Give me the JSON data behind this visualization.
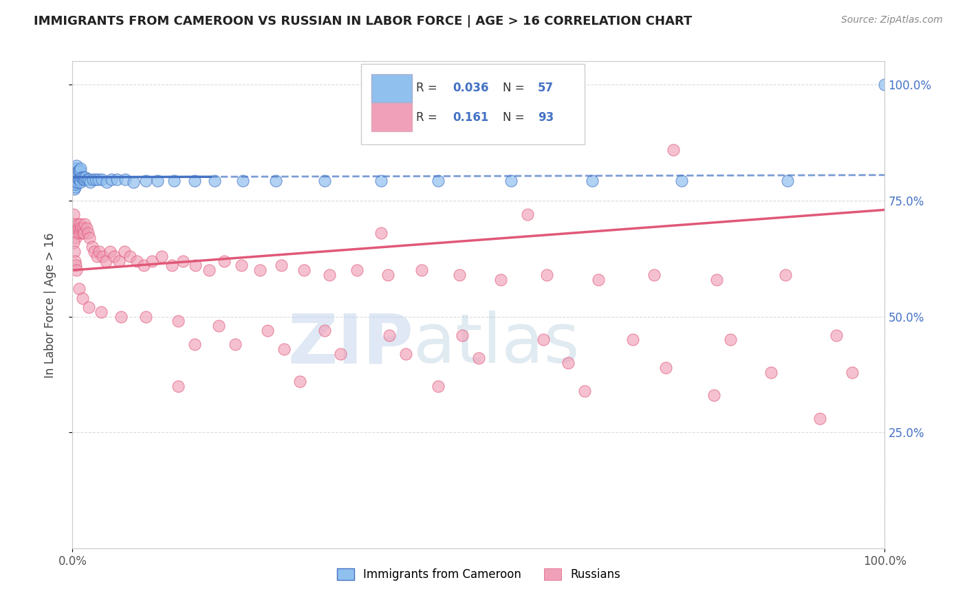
{
  "title": "IMMIGRANTS FROM CAMEROON VS RUSSIAN IN LABOR FORCE | AGE > 16 CORRELATION CHART",
  "source": "Source: ZipAtlas.com",
  "ylabel": "In Labor Force | Age > 16",
  "R_cameroon": 0.036,
  "N_cameroon": 57,
  "R_russian": 0.161,
  "N_russian": 93,
  "color_cameroon": "#90C0EE",
  "color_russian": "#F0A0B8",
  "line_color_cameroon": "#4472C4",
  "line_color_russian": "#E05878",
  "background_color": "#FFFFFF",
  "grid_color": "#CCCCCC",
  "xlim": [
    0.0,
    1.0
  ],
  "ylim": [
    0.0,
    1.05
  ],
  "ytick_labels_right": [
    "25.0%",
    "50.0%",
    "75.0%",
    "100.0%"
  ],
  "watermark_zip": "ZIP",
  "watermark_atlas": "atlas",
  "legend_labels": [
    "Immigrants from Cameroon",
    "Russians"
  ],
  "cam_x": [
    0.001,
    0.001,
    0.002,
    0.002,
    0.002,
    0.003,
    0.003,
    0.003,
    0.004,
    0.004,
    0.004,
    0.005,
    0.005,
    0.005,
    0.006,
    0.006,
    0.007,
    0.007,
    0.008,
    0.008,
    0.009,
    0.009,
    0.01,
    0.01,
    0.011,
    0.012,
    0.013,
    0.014,
    0.015,
    0.016,
    0.018,
    0.02,
    0.022,
    0.025,
    0.028,
    0.032,
    0.036,
    0.042,
    0.048,
    0.055,
    0.065,
    0.075,
    0.09,
    0.105,
    0.125,
    0.15,
    0.175,
    0.21,
    0.25,
    0.31,
    0.38,
    0.45,
    0.54,
    0.64,
    0.75,
    0.88,
    1.0
  ],
  "cam_y": [
    0.8,
    0.785,
    0.81,
    0.795,
    0.775,
    0.82,
    0.8,
    0.78,
    0.82,
    0.805,
    0.785,
    0.825,
    0.81,
    0.79,
    0.81,
    0.79,
    0.815,
    0.795,
    0.815,
    0.795,
    0.815,
    0.795,
    0.82,
    0.79,
    0.8,
    0.8,
    0.795,
    0.8,
    0.795,
    0.8,
    0.795,
    0.795,
    0.79,
    0.795,
    0.795,
    0.795,
    0.795,
    0.79,
    0.795,
    0.795,
    0.795,
    0.79,
    0.792,
    0.792,
    0.792,
    0.793,
    0.793,
    0.793,
    0.793,
    0.793,
    0.793,
    0.793,
    0.793,
    0.793,
    0.793,
    0.793,
    1.0
  ],
  "rus_x": [
    0.001,
    0.002,
    0.003,
    0.004,
    0.005,
    0.006,
    0.007,
    0.008,
    0.009,
    0.01,
    0.011,
    0.012,
    0.013,
    0.014,
    0.015,
    0.017,
    0.019,
    0.021,
    0.024,
    0.027,
    0.03,
    0.033,
    0.037,
    0.041,
    0.046,
    0.051,
    0.057,
    0.064,
    0.071,
    0.079,
    0.088,
    0.098,
    0.11,
    0.122,
    0.136,
    0.151,
    0.168,
    0.187,
    0.208,
    0.231,
    0.257,
    0.285,
    0.316,
    0.35,
    0.388,
    0.43,
    0.476,
    0.527,
    0.584,
    0.647,
    0.716,
    0.793,
    0.878,
    0.001,
    0.002,
    0.003,
    0.004,
    0.005,
    0.008,
    0.012,
    0.02,
    0.035,
    0.06,
    0.09,
    0.13,
    0.18,
    0.24,
    0.31,
    0.39,
    0.48,
    0.58,
    0.69,
    0.81,
    0.94,
    0.15,
    0.2,
    0.26,
    0.33,
    0.41,
    0.5,
    0.61,
    0.73,
    0.86,
    0.96,
    0.13,
    0.28,
    0.45,
    0.63,
    0.79,
    0.92,
    0.38,
    0.56,
    0.74
  ],
  "rus_y": [
    0.72,
    0.7,
    0.68,
    0.67,
    0.68,
    0.69,
    0.7,
    0.69,
    0.68,
    0.7,
    0.69,
    0.68,
    0.69,
    0.68,
    0.7,
    0.69,
    0.68,
    0.67,
    0.65,
    0.64,
    0.63,
    0.64,
    0.63,
    0.62,
    0.64,
    0.63,
    0.62,
    0.64,
    0.63,
    0.62,
    0.61,
    0.62,
    0.63,
    0.61,
    0.62,
    0.61,
    0.6,
    0.62,
    0.61,
    0.6,
    0.61,
    0.6,
    0.59,
    0.6,
    0.59,
    0.6,
    0.59,
    0.58,
    0.59,
    0.58,
    0.59,
    0.58,
    0.59,
    0.66,
    0.64,
    0.62,
    0.61,
    0.6,
    0.56,
    0.54,
    0.52,
    0.51,
    0.5,
    0.5,
    0.49,
    0.48,
    0.47,
    0.47,
    0.46,
    0.46,
    0.45,
    0.45,
    0.45,
    0.46,
    0.44,
    0.44,
    0.43,
    0.42,
    0.42,
    0.41,
    0.4,
    0.39,
    0.38,
    0.38,
    0.35,
    0.36,
    0.35,
    0.34,
    0.33,
    0.28,
    0.68,
    0.72,
    0.86
  ]
}
